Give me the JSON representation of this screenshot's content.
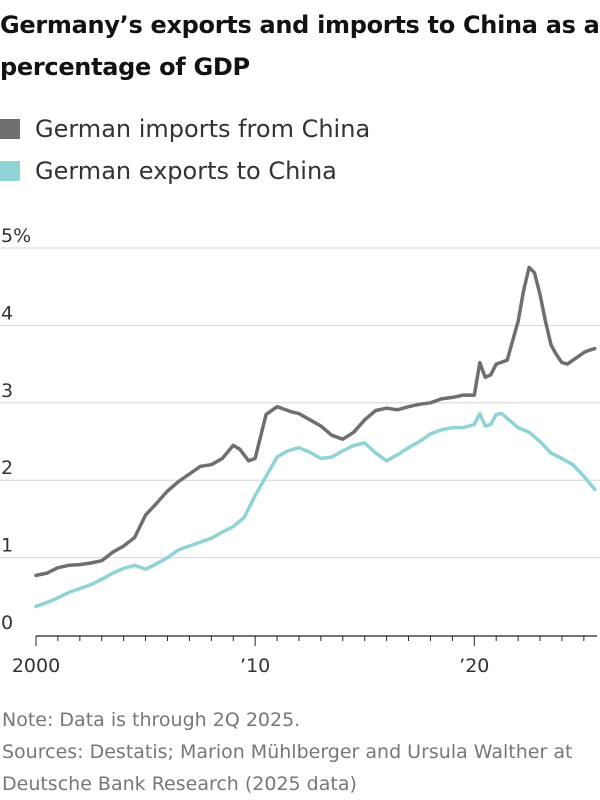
{
  "title": "Germany’s exports and imports to China as a percentage of GDP",
  "legend": [
    {
      "label": "German imports from China",
      "color": "#6f6f6f"
    },
    {
      "label": "German exports to China",
      "color": "#8fd3d6"
    }
  ],
  "notes": {
    "note": "Note: Data is through 2Q 2025.",
    "sources": "Sources: Destatis; Marion Mühlberger and Ursula Walther at Deutsche Bank Research (2025 data)"
  },
  "chart_data": {
    "type": "line",
    "title": "Germany’s exports and imports to China as a percentage of GDP",
    "xlabel": "",
    "ylabel": "",
    "xlim": [
      2000,
      2025.6
    ],
    "ylim": [
      0,
      5
    ],
    "y_ticks": [
      {
        "value": 5,
        "label": "5%"
      },
      {
        "value": 4,
        "label": "4"
      },
      {
        "value": 3,
        "label": "3"
      },
      {
        "value": 2,
        "label": "2"
      },
      {
        "value": 1,
        "label": "1"
      },
      {
        "value": 0,
        "label": "0"
      }
    ],
    "x_ticks": [
      {
        "value": 2000,
        "label": "2000"
      },
      {
        "value": 2010,
        "label": "’10"
      },
      {
        "value": 2020,
        "label": "’20"
      }
    ],
    "series": [
      {
        "name": "German imports from China",
        "color": "#6f6f6f",
        "x": [
          2000.0,
          2000.5,
          2001.0,
          2001.5,
          2002.0,
          2002.5,
          2003.0,
          2003.5,
          2004.0,
          2004.5,
          2005.0,
          2005.5,
          2006.0,
          2006.5,
          2007.0,
          2007.5,
          2008.0,
          2008.5,
          2009.0,
          2009.3,
          2009.7,
          2010.0,
          2010.5,
          2011.0,
          2011.3,
          2011.7,
          2012.0,
          2012.5,
          2013.0,
          2013.5,
          2014.0,
          2014.5,
          2015.0,
          2015.5,
          2016.0,
          2016.5,
          2017.0,
          2017.5,
          2018.0,
          2018.5,
          2019.0,
          2019.5,
          2020.0,
          2020.25,
          2020.5,
          2020.75,
          2021.0,
          2021.5,
          2021.75,
          2022.0,
          2022.25,
          2022.5,
          2022.75,
          2023.0,
          2023.25,
          2023.5,
          2023.75,
          2024.0,
          2024.25,
          2024.5,
          2024.75,
          2025.0,
          2025.25,
          2025.5
        ],
        "values": [
          0.77,
          0.8,
          0.87,
          0.9,
          0.91,
          0.93,
          0.96,
          1.07,
          1.15,
          1.26,
          1.55,
          1.7,
          1.86,
          1.98,
          2.08,
          2.18,
          2.2,
          2.28,
          2.45,
          2.4,
          2.25,
          2.28,
          2.85,
          2.95,
          2.92,
          2.88,
          2.86,
          2.78,
          2.7,
          2.58,
          2.53,
          2.62,
          2.78,
          2.9,
          2.93,
          2.91,
          2.95,
          2.98,
          3.0,
          3.05,
          3.07,
          3.1,
          3.1,
          3.52,
          3.33,
          3.36,
          3.5,
          3.55,
          3.8,
          4.05,
          4.45,
          4.75,
          4.68,
          4.4,
          4.05,
          3.75,
          3.62,
          3.52,
          3.5,
          3.55,
          3.6,
          3.65,
          3.68,
          3.7
        ]
      },
      {
        "name": "German exports to China",
        "color": "#8fd3d6",
        "x": [
          2000.0,
          2000.5,
          2001.0,
          2001.5,
          2002.0,
          2002.5,
          2003.0,
          2003.5,
          2004.0,
          2004.5,
          2005.0,
          2005.5,
          2006.0,
          2006.5,
          2007.0,
          2007.5,
          2008.0,
          2008.5,
          2009.0,
          2009.5,
          2010.0,
          2010.5,
          2011.0,
          2011.5,
          2012.0,
          2012.5,
          2013.0,
          2013.5,
          2014.0,
          2014.5,
          2015.0,
          2015.5,
          2016.0,
          2016.5,
          2017.0,
          2017.5,
          2018.0,
          2018.5,
          2019.0,
          2019.5,
          2020.0,
          2020.25,
          2020.5,
          2020.75,
          2021.0,
          2021.25,
          2021.5,
          2022.0,
          2022.5,
          2023.0,
          2023.5,
          2024.0,
          2024.5,
          2025.0,
          2025.5
        ],
        "values": [
          0.37,
          0.42,
          0.48,
          0.55,
          0.6,
          0.65,
          0.72,
          0.8,
          0.86,
          0.9,
          0.85,
          0.92,
          1.0,
          1.1,
          1.15,
          1.2,
          1.25,
          1.33,
          1.4,
          1.52,
          1.8,
          2.05,
          2.3,
          2.38,
          2.42,
          2.36,
          2.28,
          2.3,
          2.38,
          2.45,
          2.48,
          2.35,
          2.25,
          2.33,
          2.42,
          2.5,
          2.6,
          2.65,
          2.68,
          2.68,
          2.72,
          2.86,
          2.7,
          2.72,
          2.85,
          2.86,
          2.8,
          2.68,
          2.62,
          2.5,
          2.35,
          2.28,
          2.2,
          2.05,
          1.88
        ]
      }
    ]
  }
}
